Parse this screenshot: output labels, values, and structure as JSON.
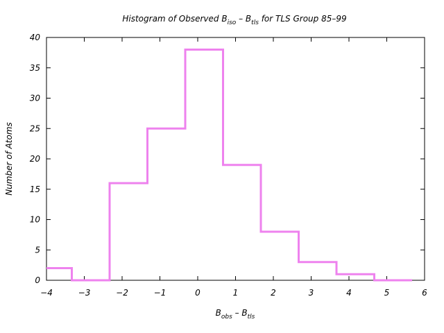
{
  "chart_data": {
    "type": "line",
    "title": {
      "part1": "Histogram of Observed B",
      "sub1": "iso",
      "part2": " – B",
      "sub2": "tls",
      "part3": "  for TLS Group 85–99"
    },
    "xlabel": {
      "main1": "B",
      "sub1": "obs",
      "main2": " – B",
      "sub2": "tls"
    },
    "ylabel": "Number of Atoms",
    "xlim": [
      -4,
      6
    ],
    "ylim": [
      0,
      40
    ],
    "xticks": [
      -4,
      -3,
      -2,
      -1,
      0,
      1,
      2,
      3,
      4,
      5,
      6
    ],
    "xtick_labels": [
      "−4",
      "−3",
      "−2",
      "−1",
      "0",
      "1",
      "2",
      "3",
      "4",
      "5",
      "6"
    ],
    "yticks": [
      0,
      5,
      10,
      15,
      20,
      25,
      30,
      35,
      40
    ],
    "ytick_labels": [
      "0",
      "5",
      "10",
      "15",
      "20",
      "25",
      "30",
      "35",
      "40"
    ],
    "style": "step",
    "grid": false,
    "series": [
      {
        "color": "#ee82ee",
        "bins": [
          {
            "from": -4.0,
            "to": -3.33,
            "count": 2
          },
          {
            "from": -3.33,
            "to": -2.33,
            "count": 0
          },
          {
            "from": -2.33,
            "to": -1.33,
            "count": 16
          },
          {
            "from": -1.33,
            "to": -0.33,
            "count": 25
          },
          {
            "from": -0.33,
            "to": 0.67,
            "count": 38
          },
          {
            "from": 0.67,
            "to": 1.67,
            "count": 19
          },
          {
            "from": 1.67,
            "to": 2.67,
            "count": 8
          },
          {
            "from": 2.67,
            "to": 3.67,
            "count": 3
          },
          {
            "from": 3.67,
            "to": 4.67,
            "count": 1
          },
          {
            "from": 4.67,
            "to": 5.67,
            "count": 0
          }
        ]
      }
    ]
  }
}
